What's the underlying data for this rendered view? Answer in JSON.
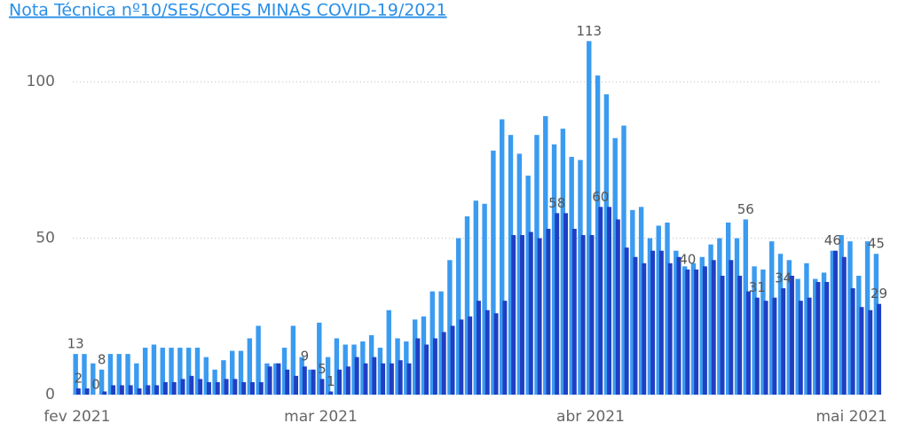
{
  "chart_data": {
    "type": "bar",
    "title": "Nota Técnica nº10/SES/COES MINAS COVID-19/2021",
    "categories": [
      "fev 2021",
      null,
      null,
      null,
      null,
      null,
      null,
      null,
      null,
      null,
      null,
      null,
      null,
      null,
      null,
      null,
      null,
      null,
      null,
      null,
      null,
      null,
      null,
      null,
      null,
      null,
      null,
      null,
      "mar 2021",
      null,
      null,
      null,
      null,
      null,
      null,
      null,
      null,
      null,
      null,
      null,
      null,
      null,
      null,
      null,
      null,
      null,
      null,
      null,
      null,
      null,
      null,
      null,
      null,
      null,
      null,
      null,
      null,
      null,
      null,
      "abr 2021",
      null,
      null,
      null,
      null,
      null,
      null,
      null,
      null,
      null,
      null,
      null,
      null,
      null,
      null,
      null,
      null,
      null,
      null,
      null,
      null,
      null,
      null,
      null,
      null,
      null,
      null,
      null,
      null,
      null,
      "mai 2021",
      null,
      null,
      null
    ],
    "series": [
      {
        "color": "#3a9bf0",
        "values": [
          13,
          13,
          10,
          8,
          13,
          13,
          13,
          10,
          15,
          16,
          15,
          15,
          15,
          15,
          15,
          12,
          8,
          11,
          14,
          14,
          18,
          22,
          10,
          10,
          15,
          22,
          12,
          8,
          23,
          12,
          18,
          16,
          16,
          17,
          19,
          15,
          27,
          18,
          17,
          24,
          25,
          33,
          33,
          43,
          50,
          57,
          62,
          61,
          78,
          88,
          83,
          77,
          70,
          83,
          89,
          80,
          85,
          76,
          75,
          113,
          102,
          96,
          82,
          86,
          59,
          60,
          50,
          54,
          55,
          46,
          41,
          42,
          44,
          48,
          50,
          55,
          50,
          56,
          41,
          40,
          49,
          45,
          43,
          37,
          42,
          37,
          39,
          46,
          51,
          49,
          38,
          49,
          45
        ],
        "value_labels": [
          "13",
          null,
          null,
          "8",
          null,
          null,
          null,
          null,
          null,
          null,
          null,
          null,
          null,
          null,
          null,
          null,
          null,
          null,
          null,
          null,
          null,
          null,
          null,
          null,
          null,
          null,
          null,
          null,
          null,
          null,
          null,
          null,
          null,
          null,
          null,
          null,
          null,
          null,
          null,
          null,
          null,
          null,
          null,
          null,
          null,
          null,
          null,
          null,
          null,
          null,
          null,
          null,
          null,
          null,
          null,
          null,
          null,
          null,
          null,
          "113",
          null,
          null,
          null,
          null,
          null,
          null,
          null,
          null,
          null,
          null,
          null,
          null,
          null,
          null,
          null,
          null,
          null,
          "56",
          null,
          null,
          null,
          null,
          null,
          null,
          null,
          null,
          null,
          "46",
          null,
          null,
          null,
          null,
          "45"
        ]
      },
      {
        "color": "#1f3fc4",
        "values": [
          2,
          2,
          0,
          1,
          3,
          3,
          3,
          2,
          3,
          3,
          4,
          4,
          5,
          6,
          5,
          4,
          4,
          5,
          5,
          4,
          4,
          4,
          9,
          10,
          8,
          6,
          9,
          8,
          5,
          1,
          8,
          9,
          12,
          10,
          12,
          10,
          10,
          11,
          10,
          18,
          16,
          18,
          20,
          22,
          24,
          25,
          30,
          27,
          26,
          30,
          51,
          51,
          52,
          50,
          53,
          58,
          58,
          53,
          51,
          51,
          60,
          60,
          56,
          47,
          44,
          42,
          46,
          46,
          42,
          44,
          40,
          40,
          41,
          43,
          38,
          43,
          38,
          33,
          31,
          30,
          31,
          34,
          38,
          30,
          31,
          36,
          36,
          46,
          44,
          34,
          28,
          27,
          29
        ],
        "value_labels": [
          "2",
          null,
          "0",
          null,
          null,
          null,
          null,
          null,
          null,
          null,
          null,
          null,
          null,
          null,
          null,
          null,
          null,
          null,
          null,
          null,
          null,
          null,
          null,
          null,
          null,
          null,
          "9",
          null,
          "5",
          "1",
          null,
          null,
          null,
          null,
          null,
          null,
          null,
          null,
          null,
          null,
          null,
          null,
          null,
          null,
          null,
          null,
          null,
          null,
          null,
          null,
          null,
          null,
          null,
          null,
          null,
          "58",
          null,
          null,
          null,
          null,
          "60",
          null,
          null,
          null,
          null,
          null,
          null,
          null,
          null,
          null,
          "40",
          null,
          null,
          null,
          null,
          null,
          null,
          null,
          "31",
          null,
          null,
          "34",
          null,
          null,
          null,
          null,
          null,
          null,
          null,
          null,
          null,
          null,
          "29"
        ]
      }
    ],
    "ylim": [
      0,
      125
    ],
    "yticks": [
      0,
      50,
      100
    ],
    "grid": true
  }
}
